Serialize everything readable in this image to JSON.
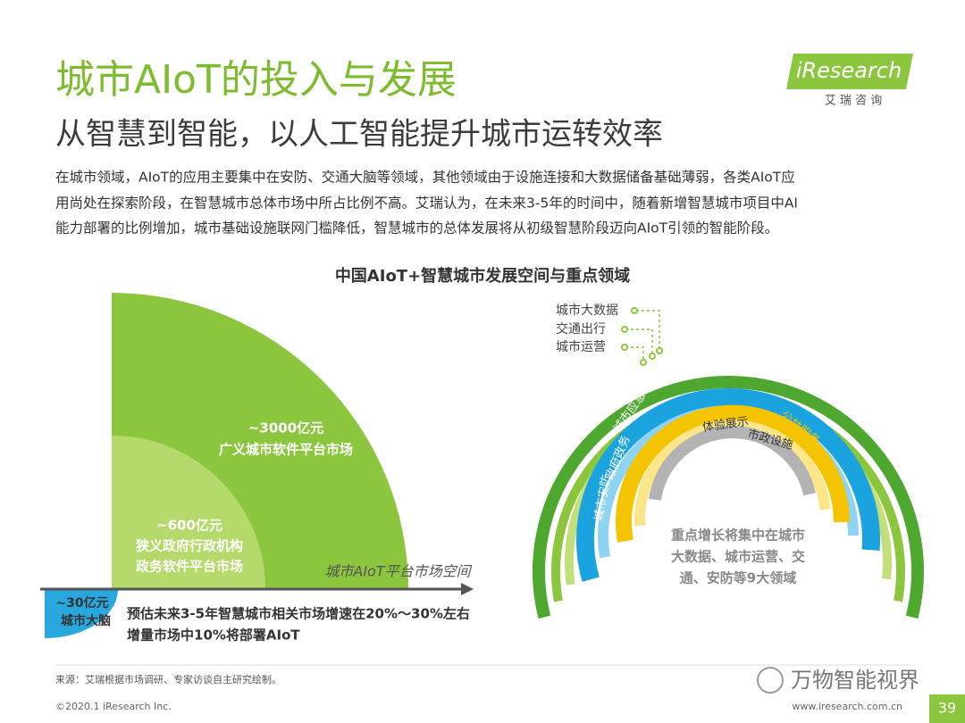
{
  "header": {
    "title": "城市AIoT的投入与发展",
    "subtitle": "从智慧到智能，以人工智能提升城市运转效率"
  },
  "logo": {
    "brand": "iResearch",
    "tagline": "艾 瑞 咨 询"
  },
  "intro": [
    "在城市领域，AIoT的应用主要集中在安防、交通大脑等领域，其他领域由于设施连接和大数据储备基础薄弱，各类AIoT应",
    "用尚处在探索阶段，在智慧城市总体市场中所占比例不高。艾瑞认为，在未来3-5年的时间中，随着新增智慧城市项目中AI",
    "能力部署的比例增加，城市基础设施联网门槛降低，智慧城市的总体发展将从初级智慧阶段迈向AIoT引领的智能阶段。"
  ],
  "diagram": {
    "title": "中国AIoT+智慧城市发展空间与重点领域",
    "left": {
      "outer": {
        "amount": "~3000亿元",
        "label": "广义城市软件平台市场"
      },
      "inner": {
        "amount": "~600亿元",
        "label": [
          "狭义政府行政机构",
          "政务软件平台市场"
        ]
      },
      "core": {
        "amount": "~30亿元",
        "label": "城市大脑"
      },
      "axis_label": "城市AIoT平台市场空间",
      "notes": [
        "预估未来3-5年智慧城市相关市场增速在20%～30%左右",
        "增量市场中10%将部署AIoT"
      ]
    },
    "right": {
      "callouts": [
        "城市大数据",
        "交通出行",
        "城市运营"
      ],
      "ring_labels": [
        "城市应急",
        "政府政务",
        "城市安防",
        "公共服务",
        "体验展示",
        "市政设施"
      ],
      "summary": [
        "重点增长将集中在城市",
        "大数据、城市运营、交",
        "通、安防等9大领域"
      ]
    }
  },
  "footer": {
    "source": "来源：艾瑞根据市场调研、专家访谈自主研究绘制。",
    "copyright": "©2020.1 iResearch Inc.",
    "url": "www.iresearch.com.cn",
    "page": "39",
    "watermark": "万物智能视界"
  }
}
